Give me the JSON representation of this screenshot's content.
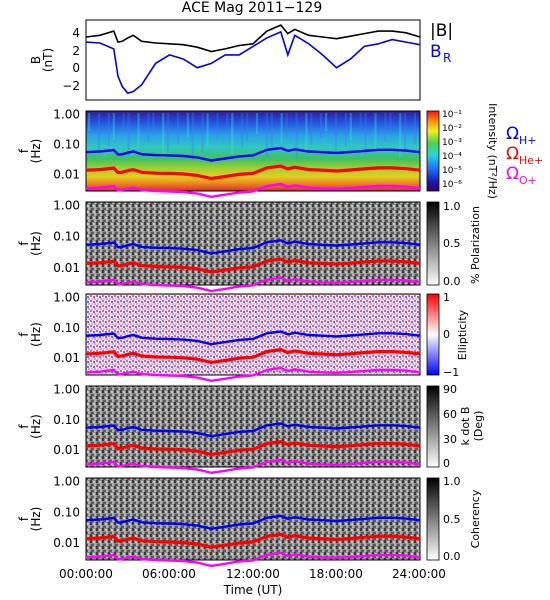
{
  "figure": {
    "title": "ACE Mag 2011−129",
    "xlabel": "Time (UT)",
    "xticks": [
      "00:00:00",
      "06:00:00",
      "12:00:00",
      "18:00:00",
      "24:00:00"
    ]
  },
  "legend": {
    "b_total": "|B|",
    "b_r": "B",
    "b_r_sub": "R",
    "omega": "Ω",
    "h_sub": "H+",
    "he_sub": "He+",
    "o_sub": "O+"
  },
  "colors": {
    "b_total": "#000000",
    "b_r": "#0000ff",
    "h": "#0000ff",
    "he": "#ff0000",
    "o": "#ff00ff"
  },
  "chart_data": [
    {
      "type": "line",
      "panel": "B",
      "ylabel": "B",
      "yunit": "(nT)",
      "yticks": [
        "4",
        "2",
        "0",
        "−2"
      ],
      "x_hours": [
        0,
        1,
        2,
        2.3,
        2.6,
        3,
        3.4,
        4,
        5,
        6,
        7,
        8,
        9,
        10,
        11,
        12,
        13,
        14,
        14.5,
        15,
        16,
        17,
        18,
        19,
        20,
        21,
        22,
        23,
        24
      ],
      "series": [
        {
          "name": "|B|",
          "values": [
            3.6,
            3.8,
            4.3,
            3.0,
            3.1,
            3.5,
            3.8,
            3.1,
            2.9,
            2.8,
            2.7,
            2.4,
            1.9,
            2.2,
            2.6,
            2.8,
            4.3,
            5.0,
            4.0,
            4.5,
            3.8,
            3.6,
            3.4,
            3.7,
            4.0,
            4.3,
            4.3,
            4.1,
            3.6
          ]
        },
        {
          "name": "B_R",
          "values": [
            3.0,
            2.9,
            2.2,
            -1.0,
            -2.2,
            -3.0,
            -2.8,
            -2.0,
            0.5,
            1.5,
            1.0,
            0.0,
            0.5,
            1.5,
            1.5,
            2.5,
            3.5,
            4.2,
            1.5,
            3.8,
            2.8,
            1.5,
            0.0,
            1.0,
            2.5,
            2.8,
            3.3,
            3.0,
            2.7
          ]
        }
      ]
    },
    {
      "type": "heatmap",
      "panel": "Intensity",
      "ylabel": "f",
      "yunit": "(Hz)",
      "yscale": "log",
      "yticks": [
        "1.00",
        "0.10",
        "0.01"
      ],
      "colorbar_label": "Intensity (nT²/Hz)",
      "colorbar_ticks": [
        "10⁻¹",
        "10⁻²",
        "10⁻³",
        "10⁻⁴",
        "10⁻⁵",
        "10⁻⁶"
      ]
    },
    {
      "type": "heatmap",
      "panel": "Polarization",
      "ylabel": "f",
      "yunit": "(Hz)",
      "yscale": "log",
      "yticks": [
        "1.00",
        "0.10",
        "0.01"
      ],
      "colorbar_label": "% Polarization",
      "colorbar_ticks": [
        "1.0",
        "0.5",
        "0.0"
      ]
    },
    {
      "type": "heatmap",
      "panel": "Ellipticity",
      "ylabel": "f",
      "yunit": "(Hz)",
      "yscale": "log",
      "yticks": [
        "1.00",
        "0.10",
        "0.01"
      ],
      "colorbar_label": "Ellipticity",
      "colorbar_ticks": [
        "1",
        "0",
        "−1"
      ]
    },
    {
      "type": "heatmap",
      "panel": "k dot B",
      "ylabel": "f",
      "yunit": "(Hz)",
      "yscale": "log",
      "yticks": [
        "1.00",
        "0.10",
        "0.01"
      ],
      "colorbar_label": "k dot B",
      "colorbar_unit": "(Deg)",
      "colorbar_ticks": [
        "90",
        "60",
        "30",
        "0"
      ]
    },
    {
      "type": "heatmap",
      "panel": "Coherency",
      "ylabel": "f",
      "yunit": "(Hz)",
      "yscale": "log",
      "yticks": [
        "1.00",
        "0.10",
        "0.01"
      ],
      "colorbar_label": "Coherency",
      "colorbar_ticks": [
        "1.0",
        "0.5",
        "0.0"
      ]
    },
    {
      "type": "line",
      "panel": "gyrofrequency overlays (Hz, drawn on all spectrogram panels)",
      "x_hours": [
        0,
        1,
        2,
        2.3,
        2.6,
        3,
        3.4,
        4,
        5,
        6,
        7,
        8,
        9,
        10,
        11,
        12,
        13,
        14,
        14.5,
        15,
        16,
        17,
        18,
        19,
        20,
        21,
        22,
        23,
        24
      ],
      "series": [
        {
          "name": "ΩH+",
          "values": [
            0.055,
            0.058,
            0.065,
            0.046,
            0.047,
            0.053,
            0.058,
            0.047,
            0.044,
            0.043,
            0.041,
            0.037,
            0.029,
            0.034,
            0.04,
            0.043,
            0.066,
            0.076,
            0.061,
            0.069,
            0.058,
            0.055,
            0.052,
            0.056,
            0.061,
            0.066,
            0.066,
            0.062,
            0.055
          ]
        },
        {
          "name": "ΩHe+",
          "values": [
            0.0138,
            0.0145,
            0.0163,
            0.0115,
            0.0118,
            0.0133,
            0.0145,
            0.0118,
            0.011,
            0.0108,
            0.0103,
            0.0093,
            0.0073,
            0.0085,
            0.01,
            0.0108,
            0.0165,
            0.019,
            0.0153,
            0.0173,
            0.0145,
            0.0138,
            0.013,
            0.014,
            0.0153,
            0.0165,
            0.0165,
            0.0155,
            0.0138
          ]
        },
        {
          "name": "ΩO+",
          "values": [
            0.0034,
            0.0036,
            0.0041,
            0.0029,
            0.003,
            0.0033,
            0.0036,
            0.003,
            0.0028,
            0.0027,
            0.0026,
            0.0023,
            0.0018,
            0.0021,
            0.0025,
            0.0027,
            0.0041,
            0.0048,
            0.0038,
            0.0043,
            0.0036,
            0.0034,
            0.0033,
            0.0035,
            0.0038,
            0.0041,
            0.0041,
            0.0039,
            0.0034
          ]
        }
      ]
    }
  ]
}
